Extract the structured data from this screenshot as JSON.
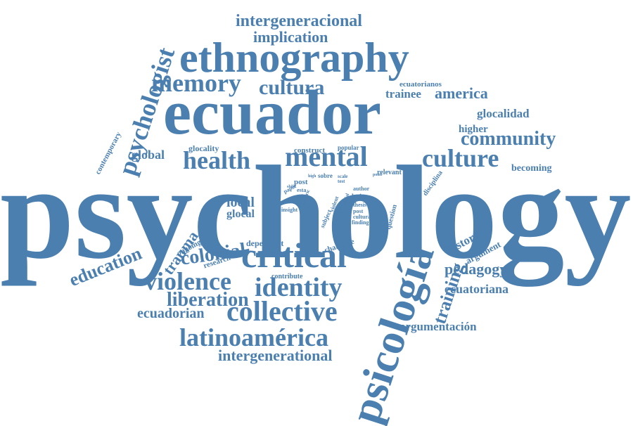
{
  "word_cloud": {
    "color": "#4a7fb0",
    "background": "#ffffff",
    "words": [
      {
        "text": "psychology"
      },
      {
        "text": "ecuador"
      },
      {
        "text": "ethnography"
      },
      {
        "text": "psicología"
      },
      {
        "text": "critical"
      },
      {
        "text": "identity"
      },
      {
        "text": "collective"
      },
      {
        "text": "mental"
      },
      {
        "text": "memory"
      },
      {
        "text": "cultura"
      },
      {
        "text": "culture"
      },
      {
        "text": "community"
      },
      {
        "text": "health"
      },
      {
        "text": "violence"
      },
      {
        "text": "liberation"
      },
      {
        "text": "latinoamérica"
      },
      {
        "text": "intergenerational"
      },
      {
        "text": "intergeneracional"
      },
      {
        "text": "implication"
      },
      {
        "text": "psychologist"
      },
      {
        "text": "education"
      },
      {
        "text": "colonial"
      },
      {
        "text": "trauma"
      },
      {
        "text": "training"
      },
      {
        "text": "pedagogy"
      },
      {
        "text": "ecuatoriana"
      },
      {
        "text": "ecuadorian"
      },
      {
        "text": "argumentación"
      },
      {
        "text": "trainee"
      },
      {
        "text": "america"
      },
      {
        "text": "glocalidad"
      },
      {
        "text": "higher"
      },
      {
        "text": "global"
      },
      {
        "text": "local"
      },
      {
        "text": "glocal"
      },
      {
        "text": "history"
      },
      {
        "text": "argument"
      },
      {
        "text": "becoming"
      },
      {
        "text": "ecuatorianos"
      },
      {
        "text": "contemporary"
      },
      {
        "text": "glocality"
      },
      {
        "text": "construct"
      },
      {
        "text": "popular"
      },
      {
        "text": "dependent"
      },
      {
        "text": "challenge"
      },
      {
        "text": "ongoing"
      },
      {
        "text": "research"
      },
      {
        "text": "contribute"
      },
      {
        "text": "relevant"
      },
      {
        "text": "disciplina"
      },
      {
        "text": "question"
      },
      {
        "text": "sobre"
      },
      {
        "text": "scale"
      },
      {
        "text": "post"
      },
      {
        "text": "esta"
      },
      {
        "text": "para"
      },
      {
        "text": "insight"
      },
      {
        "text": "author"
      },
      {
        "text": "latin"
      },
      {
        "text": "thesis"
      },
      {
        "text": "post"
      },
      {
        "text": "cultural"
      },
      {
        "text": "finding"
      },
      {
        "text": "paper"
      },
      {
        "text": "subject"
      },
      {
        "text": "shape"
      },
      {
        "text": "violent"
      },
      {
        "text": "historic"
      },
      {
        "text": "social"
      },
      {
        "text": "need"
      },
      {
        "text": "test"
      },
      {
        "text": "high"
      },
      {
        "text": "point"
      },
      {
        "text": "shift"
      }
    ]
  }
}
